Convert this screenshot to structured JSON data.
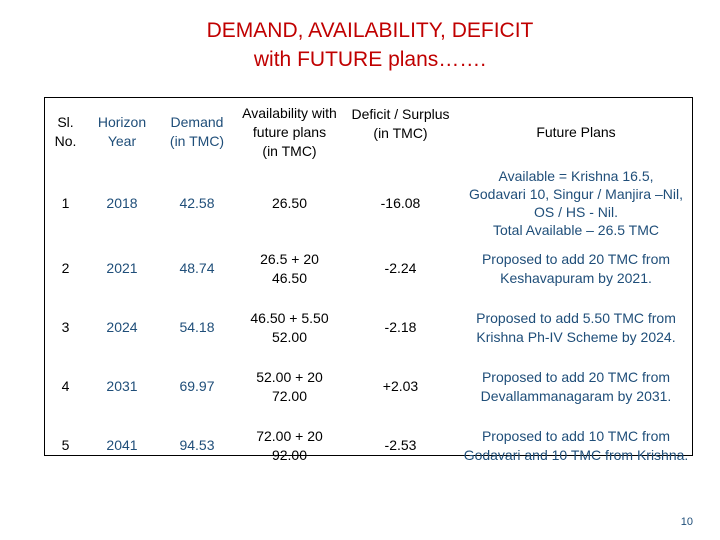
{
  "title": {
    "line1": "DEMAND, AVAILABILITY, DEFICIT",
    "line2": "with FUTURE plans……."
  },
  "colors": {
    "title": "#c00000",
    "table_text": "#1f4e79",
    "page_number": "#1f4e79"
  },
  "table": {
    "headers": {
      "sl_no": [
        "Sl.",
        "No."
      ],
      "horizon_year": [
        "Horizon",
        "Year"
      ],
      "demand": [
        "Demand",
        "(in TMC)"
      ],
      "availability": [
        "Availability with",
        "future plans",
        "(in TMC)"
      ],
      "deficit": [
        "Deficit / Surplus",
        "(in TMC)"
      ],
      "future_plans": [
        "Future Plans"
      ]
    },
    "rows": [
      {
        "sl": "1",
        "year": "2018",
        "demand": "42.58",
        "availability": [
          "26.50"
        ],
        "deficit": "-16.08",
        "plan": [
          "Available = Krishna 16.5,",
          "Godavari 10, Singur / Manjira –Nil,",
          "OS / HS - Nil.",
          "Total Available – 26.5 TMC"
        ]
      },
      {
        "sl": "2",
        "year": "2021",
        "demand": "48.74",
        "availability": [
          "26.5 + 20",
          "46.50"
        ],
        "deficit": "-2.24",
        "plan": [
          "Proposed to add 20 TMC  from",
          "Keshavapuram by 2021."
        ]
      },
      {
        "sl": "3",
        "year": "2024",
        "demand": "54.18",
        "availability": [
          "46.50 + 5.50",
          "52.00"
        ],
        "deficit": "-2.18",
        "plan": [
          "Proposed to add 5.50 TMC  from",
          "Krishna Ph-IV Scheme by 2024."
        ]
      },
      {
        "sl": "4",
        "year": "2031",
        "demand": "69.97",
        "availability": [
          "52.00 + 20",
          "72.00"
        ],
        "deficit": "+2.03",
        "plan": [
          "Proposed to add 20 TMC  from",
          "Devallammanagaram by 2031."
        ]
      },
      {
        "sl": "5",
        "year": "2041",
        "demand": "94.53",
        "availability": [
          "72.00 + 20",
          "92.00"
        ],
        "deficit": "-2.53",
        "plan": [
          "Proposed to add 10 TMC from",
          "Godavari and 10 TMC from Krishna."
        ]
      }
    ]
  },
  "page_number": "10"
}
